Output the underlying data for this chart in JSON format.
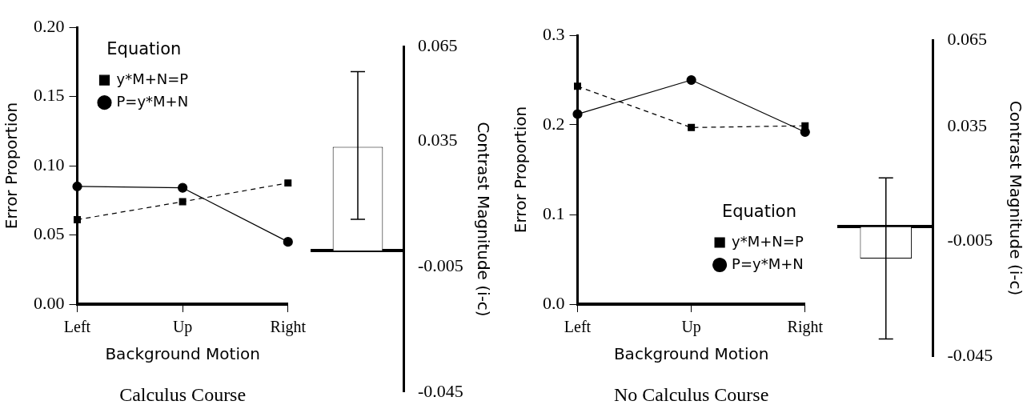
{
  "chart_data": [
    {
      "type": "line",
      "title": "Calculus Course",
      "xlabel": "Background Motion",
      "ylabel": "Error Proportion",
      "legend_title": "Equation",
      "legend": "top left",
      "categories": [
        "Left",
        "Up",
        "Right"
      ],
      "series": [
        {
          "name": "y*M+N=P",
          "color": "#000000",
          "marker": "square",
          "line_style": "dashed",
          "values": [
            0.061,
            0.074,
            0.0875
          ]
        },
        {
          "name": "P=y*M+N",
          "color": "#000000",
          "marker": "circle",
          "line_style": "solid",
          "values": [
            0.085,
            0.084,
            0.045
          ]
        }
      ],
      "ylim": [
        0,
        0.2
      ],
      "yticks": [
        {
          "value": 0,
          "label": "0.00"
        },
        {
          "value": 0.05,
          "label": "0.05"
        },
        {
          "value": 0.1,
          "label": "0.10"
        },
        {
          "value": 0.15,
          "label": "0.15"
        },
        {
          "value": 0.2,
          "label": "0.20"
        }
      ]
    },
    {
      "type": "bar",
      "ylabel": "Contrast Magnitude (i-c)",
      "categories": [
        null
      ],
      "values": [
        0.033
      ],
      "color": "#ffffff",
      "errors": [
        [
          0.01,
          0.057
        ]
      ],
      "ylim": [
        -0.045,
        0.065
      ],
      "yticks": [
        -0.045,
        -0.005,
        0.035,
        0.065
      ],
      "tick_labels": "y"
    },
    {
      "type": "line",
      "title": "No Calculus Course",
      "xlabel": "Background Motion",
      "ylabel": "Error Proportion",
      "legend_title": "Equation",
      "legend": "bottom right",
      "categories": [
        "Left",
        "Up",
        "Right"
      ],
      "series": [
        {
          "name": "y*M+N=P",
          "color": "#000000",
          "marker": "square",
          "line_style": "dashed",
          "values": [
            0.243,
            0.197,
            0.199
          ]
        },
        {
          "name": "P=y*M+N",
          "color": "#000000",
          "marker": "circle",
          "line_style": "solid",
          "values": [
            0.212,
            0.25,
            0.192
          ]
        }
      ],
      "ylim": [
        0,
        0.3
      ],
      "yticks": [
        {
          "value": 0,
          "label": "0.0"
        },
        0.1,
        0.2,
        0.3
      ]
    },
    {
      "type": "bar",
      "ylabel": "Contrast Magnitude (i-c)",
      "categories": [
        null
      ],
      "values": [
        -0.011
      ],
      "color": "#ffffff",
      "errors": [
        [
          -0.039,
          0.017
        ]
      ],
      "ylim": [
        -0.045,
        0.065
      ],
      "yticks": [
        -0.045,
        -0.005,
        0.035,
        0.065
      ],
      "tick_labels": "y"
    }
  ]
}
